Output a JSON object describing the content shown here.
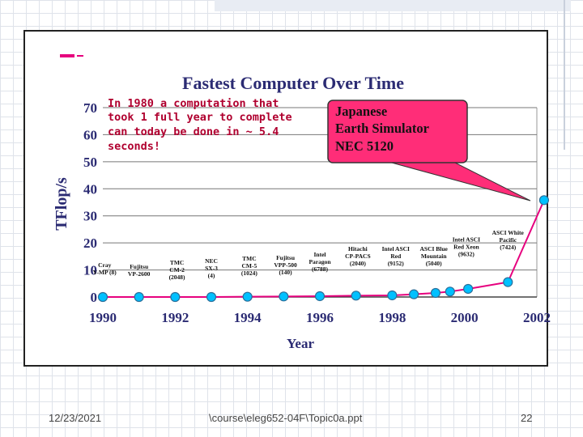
{
  "footer": {
    "date": "12/23/2021",
    "path": "\\course\\eleg652-04F\\Topic0a.ppt",
    "page": "22"
  },
  "colors": {
    "line": "#e6007e",
    "marker": "#00c0ff",
    "callout_fill": "#ff2d78",
    "text": "#2b2b73"
  },
  "chart_data": {
    "type": "line",
    "title": "Fastest Computer Over Time",
    "xlabel": "Year",
    "ylabel": "TFlop/s",
    "xlim": [
      1990,
      2002
    ],
    "ylim": [
      0,
      70
    ],
    "xticks": [
      "1990",
      "1992",
      "1994",
      "1996",
      "1998",
      "2000",
      "2002"
    ],
    "yticks": [
      "0",
      "10",
      "20",
      "30",
      "40",
      "50",
      "60",
      "70"
    ],
    "grid": true,
    "series": [
      {
        "x": [
          1990,
          1991,
          1992,
          1993,
          1994,
          1995,
          1996,
          1997,
          1998,
          1998.6,
          1999.2,
          1999.6,
          2000.1,
          2001.2,
          2002.2
        ],
        "y": [
          0.0,
          0.0,
          0.0,
          0.0,
          0.1,
          0.2,
          0.3,
          0.5,
          0.6,
          1.0,
          1.5,
          2.0,
          3.0,
          5.5,
          35.8
        ]
      }
    ],
    "point_labels": [
      {
        "lines": [
          "Cray",
          "Y-MP (8)"
        ],
        "x": 1990.05,
        "y": 11
      },
      {
        "lines": [
          "Fujitsu",
          "VP-2600"
        ],
        "x": 1991,
        "y": 10.5
      },
      {
        "lines": [
          "TMC",
          "CM-2",
          "(2048)"
        ],
        "x": 1992.05,
        "y": 12
      },
      {
        "lines": [
          "NEC",
          "SX-3",
          "(4)"
        ],
        "x": 1993,
        "y": 12.5
      },
      {
        "lines": [
          "TMC",
          "CM-5",
          "(1024)"
        ],
        "x": 1994.05,
        "y": 13.5
      },
      {
        "lines": [
          "Fujitsu",
          "VPP-500",
          "(140)"
        ],
        "x": 1995.05,
        "y": 13.8
      },
      {
        "lines": [
          "Intel",
          "Paragon",
          "(6788)"
        ],
        "x": 1996,
        "y": 15
      },
      {
        "lines": [
          "Hitachi",
          "CP-PACS",
          "(2040)"
        ],
        "x": 1997.05,
        "y": 17
      },
      {
        "lines": [
          "Intel ASCI",
          "Red",
          "(9152)"
        ],
        "x": 1998.1,
        "y": 17
      },
      {
        "lines": [
          "ASCI Blue",
          "Mountain",
          "(5040)"
        ],
        "x": 1999.15,
        "y": 17
      },
      {
        "lines": [
          "Intel ASCI",
          "Red Xeon",
          "(9632)"
        ],
        "x": 2000.05,
        "y": 20.5
      },
      {
        "lines": [
          "ASCI White",
          "Pacific",
          "(7424)"
        ],
        "x": 2001.2,
        "y": 23
      }
    ],
    "annotation": {
      "lines": [
        "In 1980 a computation that",
        "took 1 full year to complete",
        "can today be done in ~ 5.4",
        "seconds!"
      ]
    },
    "callout": {
      "lines": [
        "Japanese",
        "Earth Simulator",
        "NEC 5120"
      ]
    }
  }
}
